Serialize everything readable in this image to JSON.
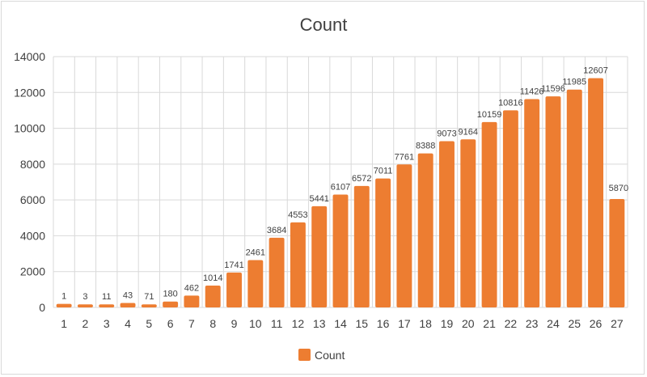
{
  "chart_data": {
    "type": "bar",
    "title": "Count",
    "xlabel": "",
    "ylabel": "",
    "categories": [
      "1",
      "2",
      "3",
      "4",
      "5",
      "6",
      "7",
      "8",
      "9",
      "10",
      "11",
      "12",
      "13",
      "14",
      "15",
      "16",
      "17",
      "18",
      "19",
      "20",
      "21",
      "22",
      "23",
      "24",
      "25",
      "26",
      "27"
    ],
    "series": [
      {
        "name": "Count",
        "color": "#ED7D31",
        "values": [
          1,
          3,
          11,
          43,
          71,
          180,
          462,
          1014,
          1741,
          2461,
          3684,
          4553,
          5441,
          6107,
          6572,
          7011,
          7761,
          8388,
          9073,
          9164,
          10159,
          10816,
          11426,
          11596,
          11985,
          12607,
          5870
        ],
        "drawn_heights": [
          200,
          170,
          170,
          250,
          170,
          330,
          660,
          1220,
          1950,
          2640,
          3890,
          4750,
          5650,
          6300,
          6780,
          7200,
          7980,
          8600,
          9280,
          9380,
          10350,
          11000,
          11630,
          11780,
          12160,
          12800,
          6050
        ]
      }
    ],
    "ylim": [
      0,
      14000
    ],
    "yticks": [
      0,
      2000,
      4000,
      6000,
      8000,
      10000,
      12000,
      14000
    ],
    "grid": true,
    "legend_position": "bottom"
  }
}
